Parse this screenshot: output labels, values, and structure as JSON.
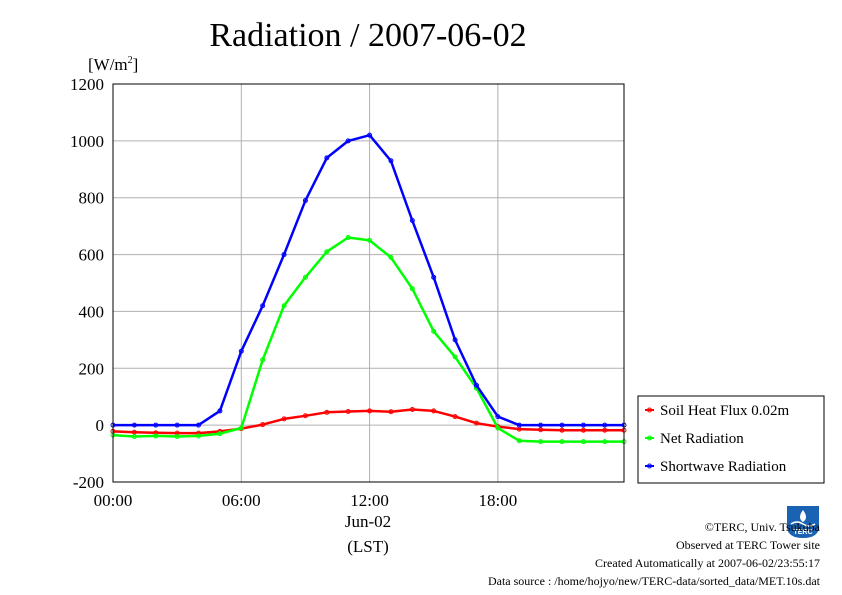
{
  "chart_data": {
    "type": "line",
    "title": "Radiation / 2007-06-02",
    "ylabel_prefix": "[W/m",
    "ylabel_sup": "2",
    "ylabel_suffix": "]",
    "xlabel_date": "Jun-02",
    "xlabel_units": "(LST)",
    "xlim_hours": [
      0,
      23.9
    ],
    "ylim": [
      -200,
      1200
    ],
    "yticks": [
      -200,
      0,
      200,
      400,
      600,
      800,
      1000,
      1200
    ],
    "ytick_labels": [
      "-200",
      "0",
      "200",
      "400",
      "600",
      "800",
      "1000",
      "1200"
    ],
    "xticks_hours": [
      0,
      6,
      12,
      18
    ],
    "xtick_labels": [
      "00:00",
      "06:00",
      "12:00",
      "18:00"
    ],
    "grid": true,
    "legend_position": "right",
    "series": [
      {
        "name": "Soil Heat Flux 0.02m",
        "color": "#ff0000",
        "x": [
          0,
          1,
          2,
          3,
          4,
          5,
          6,
          7,
          8,
          9,
          10,
          11,
          12,
          13,
          14,
          15,
          16,
          17,
          18,
          19,
          20,
          21,
          22,
          23,
          23.9
        ],
        "y": [
          -22,
          -25,
          -27,
          -28,
          -28,
          -22,
          -12,
          2,
          22,
          33,
          45,
          48,
          50,
          47,
          55,
          50,
          30,
          7,
          -5,
          -14,
          -16,
          -18,
          -18,
          -18,
          -18
        ]
      },
      {
        "name": "Net Radiation",
        "color": "#00ff00",
        "x": [
          0,
          1,
          2,
          3,
          4,
          5,
          6,
          7,
          8,
          9,
          10,
          11,
          12,
          13,
          14,
          15,
          16,
          17,
          18,
          19,
          20,
          21,
          22,
          23,
          23.9
        ],
        "y": [
          -35,
          -40,
          -38,
          -40,
          -38,
          -30,
          -10,
          230,
          420,
          520,
          610,
          660,
          650,
          590,
          480,
          330,
          240,
          130,
          -10,
          -55,
          -58,
          -58,
          -58,
          -58,
          -58
        ]
      },
      {
        "name": "Shortwave Radiation",
        "color": "#0000ff",
        "x": [
          0,
          1,
          2,
          3,
          4,
          5,
          6,
          7,
          8,
          9,
          10,
          11,
          12,
          13,
          14,
          15,
          16,
          17,
          18,
          19,
          20,
          21,
          22,
          23,
          23.9
        ],
        "y": [
          0,
          0,
          0,
          0,
          0,
          50,
          260,
          420,
          600,
          790,
          940,
          1000,
          1020,
          930,
          720,
          520,
          300,
          140,
          30,
          0,
          0,
          0,
          0,
          0,
          0
        ]
      }
    ]
  },
  "footer": {
    "copyright": "©TERC, Univ. Tsukuba",
    "observed": "Observed at TERC Tower site",
    "created": "Created Automatically at 2007-06-02/23:55:17",
    "source": "Data source : /home/hojyo/new/TERC-data/sorted_data/MET.10s.dat"
  },
  "logo": {
    "text": "TERC",
    "color": "#1a62b3"
  }
}
